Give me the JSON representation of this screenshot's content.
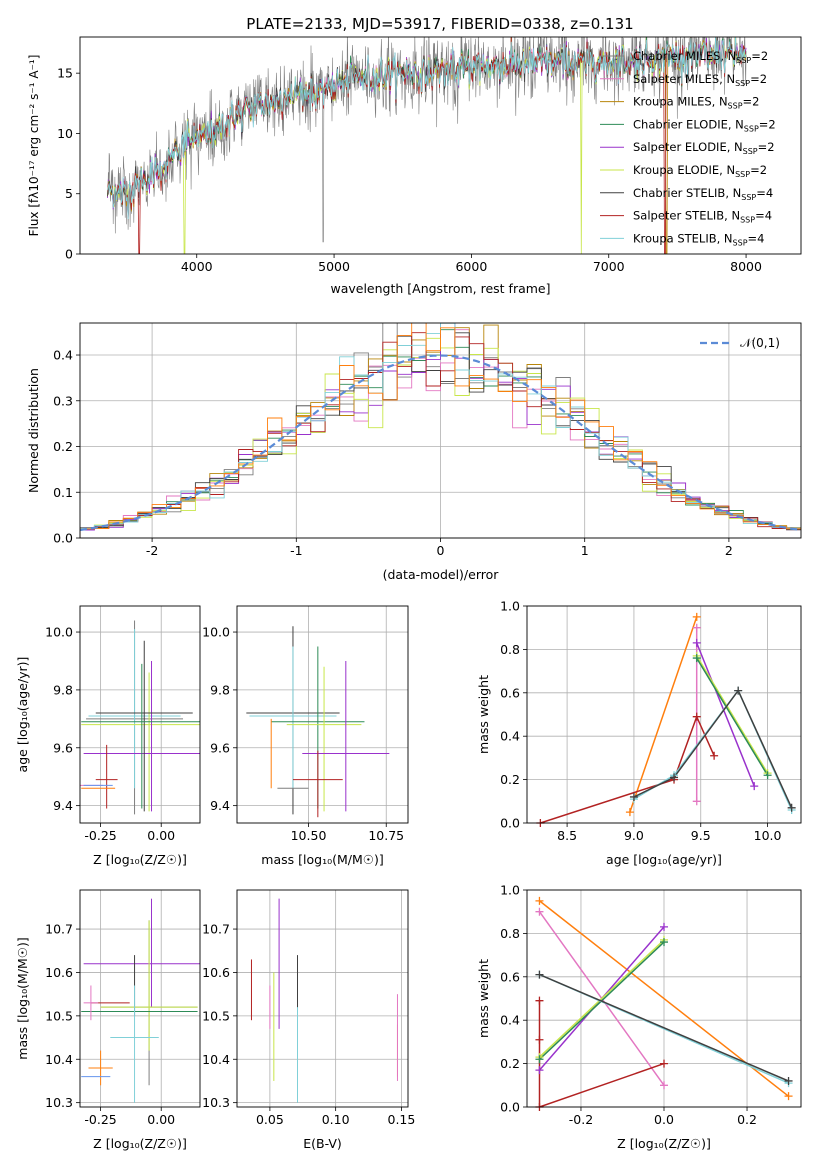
{
  "title": "PLATE=2133, MJD=53917, FIBERID=0338, z=0.131",
  "colors": {
    "Chabrier MILES": "#7f7f7f",
    "Salpeter MILES": "#e377c2",
    "Kroupa MILES": "#b8860b",
    "Chabrier ELODIE": "#2e8b57",
    "Salpeter ELODIE": "#9932cc",
    "Kroupa ELODIE": "#c8e64a",
    "Chabrier STELIB": "#404040",
    "Salpeter STELIB": "#b22222",
    "Kroupa STELIB": "#80d0d8",
    "orange": "#ff7f0e",
    "blue": "#6495ed",
    "gold": "#d2b48c"
  },
  "chart_data": [
    {
      "id": "spectrum",
      "type": "line",
      "title": "PLATE=2133, MJD=53917, FIBERID=0338, z=0.131",
      "xlabel": "wavelength [Angstrom, rest frame]",
      "ylabel": "Flux [f_λ 10^-17 erg cm^-2 s^-1 A^-1]",
      "xlim": [
        3150,
        8400
      ],
      "ylim": [
        0,
        18
      ],
      "xticks": [
        4000,
        5000,
        6000,
        7000,
        8000
      ],
      "yticks": [
        0,
        5,
        10,
        15
      ],
      "legend_position": "top-right",
      "legend": [
        {
          "name": "Chabrier MILES, N_SSP=2",
          "label": "Chabrier MILES, N",
          "sub": "SSP",
          "tail": "=2"
        },
        {
          "name": "Salpeter MILES, N_SSP=2",
          "label": "Salpeter MILES, N",
          "sub": "SSP",
          "tail": "=2"
        },
        {
          "name": "Kroupa MILES, N_SSP=2",
          "label": "Kroupa MILES, N",
          "sub": "SSP",
          "tail": "=2"
        },
        {
          "name": "Chabrier ELODIE, N_SSP=2",
          "label": "Chabrier ELODIE, N",
          "sub": "SSP",
          "tail": "=2"
        },
        {
          "name": "Salpeter ELODIE, N_SSP=2",
          "label": "Salpeter ELODIE, N",
          "sub": "SSP",
          "tail": "=2"
        },
        {
          "name": "Kroupa ELODIE, N_SSP=2",
          "label": "Kroupa ELODIE, N",
          "sub": "SSP",
          "tail": "=2"
        },
        {
          "name": "Chabrier STELIB, N_SSP=4",
          "label": "Chabrier STELIB, N",
          "sub": "SSP",
          "tail": "=4"
        },
        {
          "name": "Salpeter STELIB, N_SSP=4",
          "label": "Salpeter STELIB, N",
          "sub": "SSP",
          "tail": "=4"
        },
        {
          "name": "Kroupa STELIB, N_SSP=4",
          "label": "Kroupa STELIB, N",
          "sub": "SSP",
          "tail": "=4"
        }
      ],
      "data_range": [
        3350,
        8000
      ],
      "continuum": [
        [
          3350,
          5.2
        ],
        [
          3500,
          5.0
        ],
        [
          3650,
          6.5
        ],
        [
          3800,
          7.5
        ],
        [
          3950,
          9.5
        ],
        [
          4100,
          10.0
        ],
        [
          4300,
          11.5
        ],
        [
          4500,
          12.5
        ],
        [
          4700,
          13.2
        ],
        [
          4900,
          13.5
        ],
        [
          5100,
          14.5
        ],
        [
          5300,
          14.8
        ],
        [
          5500,
          15.0
        ],
        [
          5800,
          15.2
        ],
        [
          6000,
          15.5
        ],
        [
          6300,
          15.8
        ],
        [
          6600,
          15.9
        ],
        [
          6800,
          15.8
        ],
        [
          7000,
          16.0
        ],
        [
          7300,
          16.2
        ],
        [
          7600,
          16.5
        ],
        [
          8000,
          16.6
        ]
      ],
      "dips": [
        [
          3580,
          0,
          "Salpeter STELIB"
        ],
        [
          3910,
          0,
          "Kroupa ELODIE"
        ],
        [
          4920,
          1.0,
          "Chabrier MILES"
        ],
        [
          5900,
          10.8,
          "Chabrier MILES"
        ],
        [
          6800,
          0,
          "Kroupa ELODIE"
        ],
        [
          7410,
          0,
          "Salpeter STELIB"
        ],
        [
          7420,
          0,
          "Kroupa MILES"
        ]
      ]
    },
    {
      "id": "residuals",
      "type": "histogram",
      "xlabel": "(data-model)/error",
      "ylabel": "Normed distribution",
      "xlim": [
        -2.5,
        2.5
      ],
      "ylim": [
        0,
        0.47
      ],
      "xticks": [
        -2,
        -1,
        0,
        1,
        2
      ],
      "yticks": [
        0.0,
        0.1,
        0.2,
        0.3,
        0.4
      ],
      "legend_position": "top-right",
      "legend": [
        "𝒩(0,1)"
      ],
      "bins": [
        -2.5,
        2.5,
        50
      ]
    },
    {
      "id": "age_vs_Z",
      "type": "scatter",
      "xlabel": "Z [log₁₀(Z/Z☉)]",
      "ylabel": "age  [log₁₀(age/yr)]",
      "xlim": [
        -0.335,
        0.16
      ],
      "ylim": [
        9.34,
        10.09
      ],
      "xticks": [
        -0.25,
        0.0
      ],
      "yticks": [
        9.4,
        9.6,
        9.8,
        10.0
      ],
      "points": [
        {
          "series": "Chabrier MILES",
          "x": -0.11,
          "y": 9.7,
          "xerr": 0.2,
          "yerr": [
            0.33,
            0.34
          ]
        },
        {
          "series": "Kroupa STELIB",
          "x": -0.11,
          "y": 9.71,
          "xerr": 0.19,
          "yerr": [
            0.25,
            0.3
          ]
        },
        {
          "series": "Kroupa ELODIE",
          "x": -0.05,
          "y": 9.68,
          "xerr": 0.28,
          "yerr": [
            0.3,
            0.18
          ]
        },
        {
          "series": "Salpeter ELODIE",
          "x": -0.04,
          "y": 9.58,
          "xerr": 0.28,
          "yerr": [
            0.2,
            0.32
          ]
        },
        {
          "series": "Chabrier STELIB",
          "x": -0.07,
          "y": 9.72,
          "xerr": 0.2,
          "yerr": [
            0.34,
            0.25
          ]
        },
        {
          "series": "Chabrier ELODIE",
          "x": -0.08,
          "y": 9.69,
          "xerr": 0.25,
          "yerr": [
            0.3,
            0.2
          ]
        },
        {
          "series": "Salpeter STELIB",
          "x": -0.225,
          "y": 9.49,
          "xerr": 0.045,
          "yerr": [
            0.1,
            0.12
          ]
        },
        {
          "series": "Salpeter MILES",
          "x": -0.29,
          "y": 9.47,
          "xerr": 0.05,
          "yerr": [
            0.0,
            0.0
          ]
        },
        {
          "series": "orange",
          "x": -0.26,
          "y": 9.46,
          "xerr": 0.07,
          "yerr": [
            0.0,
            0.0
          ]
        },
        {
          "series": "blue",
          "x": -0.26,
          "y": 9.47,
          "xerr": 0.06,
          "yerr": [
            0.0,
            0.0
          ]
        }
      ]
    },
    {
      "id": "age_vs_mass",
      "type": "scatter",
      "xlabel": "mass [log₁₀(M/M☉)]",
      "ylabel": "",
      "xlim": [
        10.27,
        10.82
      ],
      "ylim": [
        9.34,
        10.09
      ],
      "xticks": [
        10.5,
        10.75
      ],
      "yticks": [
        9.4,
        9.6,
        9.8,
        10.0
      ],
      "points": [
        {
          "series": "Chabrier STELIB",
          "x": 10.45,
          "y": 9.72,
          "xerr": 0.15,
          "yerr": [
            0.35,
            0.3
          ]
        },
        {
          "series": "Kroupa STELIB",
          "x": 10.45,
          "y": 9.71,
          "xerr": 0.14,
          "yerr": [
            0.25,
            0.24
          ]
        },
        {
          "series": "Chabrier ELODIE",
          "x": 10.53,
          "y": 9.69,
          "xerr": 0.15,
          "yerr": [
            0.3,
            0.26
          ]
        },
        {
          "series": "Kroupa ELODIE",
          "x": 10.55,
          "y": 9.68,
          "xerr": 0.12,
          "yerr": [
            0.3,
            0.2
          ]
        },
        {
          "series": "Salpeter ELODIE",
          "x": 10.62,
          "y": 9.58,
          "xerr": 0.14,
          "yerr": [
            0.2,
            0.32
          ]
        },
        {
          "series": "Salpeter STELIB",
          "x": 10.53,
          "y": 9.49,
          "xerr": 0.08,
          "yerr": [
            0.13,
            0.1
          ]
        },
        {
          "series": "Chabrier MILES",
          "x": 10.45,
          "y": 9.46,
          "xerr": 0.05,
          "yerr": [
            0.0,
            0.0
          ]
        },
        {
          "series": "orange",
          "x": 10.38,
          "y": 9.58,
          "xerr": 0.0,
          "yerr": [
            0.12,
            0.12
          ]
        },
        {
          "series": "blue",
          "x": 10.37,
          "y": 9.47,
          "xerr": 0.0,
          "yerr": [
            0.0,
            0.0
          ]
        }
      ]
    },
    {
      "id": "weight_vs_age",
      "type": "line",
      "xlabel": "age  [log₁₀(age/yr)]",
      "ylabel": "mass weight",
      "xlim": [
        8.2,
        10.25
      ],
      "ylim": [
        0,
        1
      ],
      "xticks": [
        8.5,
        9.0,
        9.5,
        10.0
      ],
      "yticks": [
        0.0,
        0.2,
        0.4,
        0.6,
        0.8,
        1.0
      ],
      "series": [
        {
          "name": "orange",
          "x": [
            8.97,
            9.47
          ],
          "y": [
            0.05,
            0.95
          ]
        },
        {
          "name": "Salpeter MILES",
          "x": [
            9.47,
            9.47
          ],
          "y": [
            0.1,
            0.9
          ]
        },
        {
          "name": "Salpeter ELODIE",
          "x": [
            9.47,
            9.9
          ],
          "y": [
            0.83,
            0.17
          ]
        },
        {
          "name": "Kroupa ELODIE",
          "x": [
            9.47,
            10.0
          ],
          "y": [
            0.77,
            0.23
          ]
        },
        {
          "name": "Chabrier ELODIE",
          "x": [
            9.47,
            10.0
          ],
          "y": [
            0.76,
            0.22
          ]
        },
        {
          "name": "Salpeter STELIB",
          "x": [
            8.3,
            9.3,
            9.47,
            9.6
          ],
          "y": [
            0.0,
            0.2,
            0.49,
            0.31
          ]
        },
        {
          "name": "Kroupa STELIB",
          "x": [
            9.0,
            9.3,
            9.78,
            10.18
          ],
          "y": [
            0.11,
            0.22,
            0.61,
            0.06
          ]
        },
        {
          "name": "Chabrier STELIB",
          "x": [
            9.0,
            9.3,
            9.78,
            10.18
          ],
          "y": [
            0.12,
            0.21,
            0.61,
            0.07
          ]
        }
      ]
    },
    {
      "id": "mass_vs_Z",
      "type": "scatter",
      "xlabel": "Z [log₁₀(Z/Z☉)]",
      "ylabel": "mass [log₁₀(M/M☉)]",
      "xlim": [
        -0.335,
        0.16
      ],
      "ylim": [
        10.29,
        10.79
      ],
      "xticks": [
        -0.25,
        0.0
      ],
      "yticks": [
        10.3,
        10.4,
        10.5,
        10.6,
        10.7
      ],
      "points": [
        {
          "series": "Salpeter ELODIE",
          "x": -0.04,
          "y": 10.62,
          "xerr": 0.28,
          "yerr": [
            0.1,
            0.15
          ]
        },
        {
          "series": "Chabrier STELIB",
          "x": -0.11,
          "y": 10.6,
          "xerr": 0.0,
          "yerr": [
            0.1,
            0.04
          ]
        },
        {
          "series": "Chabrier MILES",
          "x": -0.05,
          "y": 10.52,
          "xerr": 0.2,
          "yerr": [
            0.18,
            0.2
          ]
        },
        {
          "series": "Kroupa ELODIE",
          "x": -0.05,
          "y": 10.52,
          "xerr": 0.2,
          "yerr": [
            0.1,
            0.2
          ]
        },
        {
          "series": "Chabrier ELODIE",
          "x": -0.09,
          "y": 10.51,
          "xerr": 0.24,
          "yerr": [
            0.0,
            0.0
          ]
        },
        {
          "series": "Salpeter STELIB",
          "x": -0.21,
          "y": 10.53,
          "xerr": 0.08,
          "yerr": [
            0.0,
            0.0
          ]
        },
        {
          "series": "Salpeter MILES",
          "x": -0.29,
          "y": 10.53,
          "xerr": 0.03,
          "yerr": [
            0.04,
            0.04
          ]
        },
        {
          "series": "Kroupa STELIB",
          "x": -0.11,
          "y": 10.45,
          "xerr": 0.1,
          "yerr": [
            0.15,
            0.12
          ]
        },
        {
          "series": "orange",
          "x": -0.25,
          "y": 10.38,
          "xerr": 0.05,
          "yerr": [
            0.04,
            0.04
          ]
        },
        {
          "series": "blue",
          "x": -0.27,
          "y": 10.36,
          "xerr": 0.06,
          "yerr": [
            0.0,
            0.0
          ]
        }
      ]
    },
    {
      "id": "mass_vs_ebv",
      "type": "scatter",
      "xlabel": "E(B-V)",
      "ylabel": "",
      "xlim": [
        0.025,
        0.155
      ],
      "ylim": [
        10.29,
        10.79
      ],
      "xticks": [
        0.05,
        0.1,
        0.15
      ],
      "yticks": [
        10.3,
        10.4,
        10.5,
        10.6,
        10.7
      ],
      "points": [
        {
          "series": "Salpeter STELIB",
          "x": 0.036,
          "y": 10.56,
          "xerr": 0.0,
          "yerr": [
            0.07,
            0.07
          ]
        },
        {
          "series": "Salpeter MILES",
          "x": 0.05,
          "y": 10.52,
          "xerr": 0.0,
          "yerr": [
            0.05,
            0.05
          ]
        },
        {
          "series": "Kroupa ELODIE",
          "x": 0.053,
          "y": 10.45,
          "xerr": 0.0,
          "yerr": [
            0.1,
            0.15
          ]
        },
        {
          "series": "Salpeter ELODIE",
          "x": 0.057,
          "y": 10.62,
          "xerr": 0.0,
          "yerr": [
            0.15,
            0.15
          ]
        },
        {
          "series": "Chabrier STELIB",
          "x": 0.071,
          "y": 10.56,
          "xerr": 0.0,
          "yerr": [
            0.08,
            0.08
          ]
        },
        {
          "series": "Kroupa STELIB",
          "x": 0.071,
          "y": 10.45,
          "xerr": 0.0,
          "yerr": [
            0.15,
            0.07
          ]
        },
        {
          "series": "orange",
          "x": 0.147,
          "y": 10.42,
          "xerr": 0.0,
          "yerr": [
            0.06,
            0.06
          ]
        },
        {
          "series": "Salpeter MILES",
          "x": 0.147,
          "y": 10.45,
          "xerr": 0.0,
          "yerr": [
            0.1,
            0.1
          ]
        }
      ]
    },
    {
      "id": "weight_vs_Z",
      "type": "line",
      "xlabel": "Z [log₁₀(Z/Z☉)]",
      "ylabel": "mass weight",
      "xlim": [
        -0.33,
        0.33
      ],
      "ylim": [
        0,
        1
      ],
      "xticks": [
        -0.2,
        0.0,
        0.2
      ],
      "yticks": [
        0.0,
        0.2,
        0.4,
        0.6,
        0.8,
        1.0
      ],
      "series": [
        {
          "name": "orange",
          "x": [
            -0.3,
            0.3
          ],
          "y": [
            0.95,
            0.05
          ]
        },
        {
          "name": "Salpeter MILES",
          "x": [
            -0.3,
            0.0
          ],
          "y": [
            0.9,
            0.1
          ]
        },
        {
          "name": "Salpeter ELODIE",
          "x": [
            -0.3,
            0.0
          ],
          "y": [
            0.17,
            0.83
          ]
        },
        {
          "name": "Kroupa ELODIE",
          "x": [
            -0.3,
            0.0
          ],
          "y": [
            0.23,
            0.77
          ]
        },
        {
          "name": "Chabrier ELODIE",
          "x": [
            -0.3,
            0.0
          ],
          "y": [
            0.22,
            0.76
          ]
        },
        {
          "name": "Salpeter STELIB",
          "x": [
            -0.3,
            -0.3,
            -0.3,
            0.0
          ],
          "y": [
            0.49,
            0.31,
            0.0,
            0.2
          ]
        },
        {
          "name": "Kroupa STELIB",
          "x": [
            -0.3,
            0.3
          ],
          "y": [
            0.61,
            0.11
          ]
        },
        {
          "name": "Chabrier STELIB",
          "x": [
            -0.3,
            0.3
          ],
          "y": [
            0.61,
            0.12
          ]
        }
      ]
    }
  ]
}
